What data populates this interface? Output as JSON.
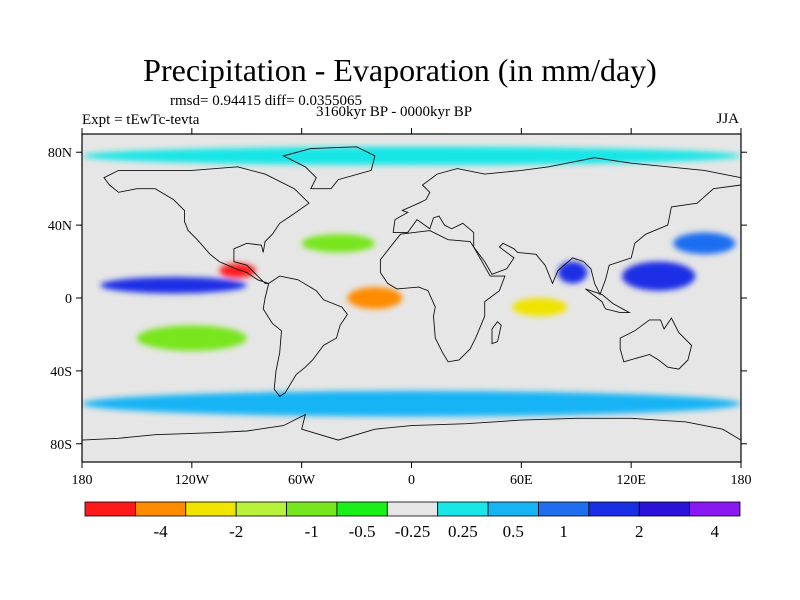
{
  "title": "Precipitation - Evaporation (in mm/day)",
  "stats": "rmsd= 0.94415 diff= 0.0355065",
  "experiment": "Expt = tEwTc-tevta",
  "period": "3160kyr BP - 0000kyr BP",
  "season": "JJA",
  "chart_data": {
    "type": "heatmap",
    "title": "Precipitation - Evaporation (in mm/day)",
    "projection": "cylindrical-equidistant",
    "x_range": [
      -180,
      180
    ],
    "y_range": [
      -90,
      90
    ],
    "x_ticks": [
      {
        "value": -180,
        "label": "180"
      },
      {
        "value": -120,
        "label": "120W"
      },
      {
        "value": -60,
        "label": "60W"
      },
      {
        "value": 0,
        "label": "0"
      },
      {
        "value": 60,
        "label": "60E"
      },
      {
        "value": 120,
        "label": "120E"
      },
      {
        "value": 180,
        "label": "180"
      }
    ],
    "y_ticks": [
      {
        "value": 80,
        "label": "80N"
      },
      {
        "value": 40,
        "label": "40N"
      },
      {
        "value": 0,
        "label": "0"
      },
      {
        "value": -40,
        "label": "40S"
      },
      {
        "value": -80,
        "label": "80S"
      }
    ],
    "colorbar": {
      "labels": [
        "-4",
        "-2",
        "-1",
        "-0.5",
        "-0.25",
        "0.25",
        "0.5",
        "1",
        "2",
        "4"
      ],
      "colors": [
        "#ff1a1a",
        "#ff8c00",
        "#f0e400",
        "#b8f23a",
        "#78e61e",
        "#19f019",
        "#e6e6e6",
        "#19e6e6",
        "#16b4f5",
        "#1f6ef0",
        "#1a2ee6",
        "#2a12d8",
        "#8a18f2"
      ]
    },
    "regions": [
      {
        "name": "western-pacific-wet",
        "lon": 135,
        "lat": 12,
        "w": 40,
        "h": 16,
        "class": "2 to 4"
      },
      {
        "name": "bay-of-bengal-wet",
        "lon": 88,
        "lat": 14,
        "w": 16,
        "h": 12,
        "class": "2 to 4"
      },
      {
        "name": "north-pacific-wet",
        "lon": 160,
        "lat": 30,
        "w": 34,
        "h": 12,
        "class": "1 to 2"
      },
      {
        "name": "itcz-pacific-wet",
        "lon": -130,
        "lat": 7,
        "w": 80,
        "h": 9,
        "class": "2 to 4"
      },
      {
        "name": "itcz-pacific-dry",
        "lon": -95,
        "lat": 15,
        "w": 20,
        "h": 8,
        "class": "< -4"
      },
      {
        "name": "atlantic-dry",
        "lon": -20,
        "lat": 0,
        "w": 30,
        "h": 12,
        "class": "-4 to -2"
      },
      {
        "name": "indian-dry",
        "lon": 70,
        "lat": -5,
        "w": 30,
        "h": 10,
        "class": "-2 to -1"
      },
      {
        "name": "southern-ocean-wet",
        "lon": 0,
        "lat": -58,
        "w": 360,
        "h": 14,
        "class": "0.5 to 1"
      },
      {
        "name": "arctic-wet",
        "lon": 0,
        "lat": 78,
        "w": 360,
        "h": 10,
        "class": "0.25 to 0.5"
      },
      {
        "name": "subtropical-atlantic-dry",
        "lon": -40,
        "lat": 30,
        "w": 40,
        "h": 10,
        "class": "-0.5 to -0.25"
      },
      {
        "name": "south-pacific-dry",
        "lon": -120,
        "lat": -22,
        "w": 60,
        "h": 14,
        "class": "-0.5 to -0.25"
      }
    ]
  }
}
